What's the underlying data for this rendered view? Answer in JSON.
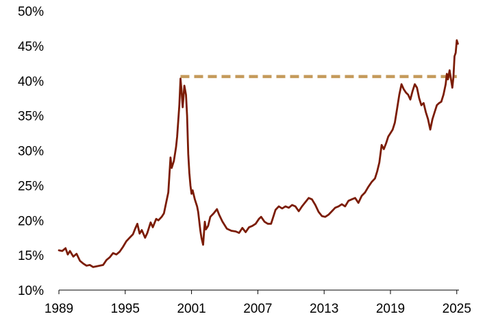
{
  "chart_data": {
    "type": "line",
    "title": "",
    "xlabel": "",
    "ylabel": "",
    "xlim": [
      1989,
      2025.2
    ],
    "ylim": [
      10,
      50
    ],
    "x_ticks": [
      1989,
      1995,
      2001,
      2007,
      2013,
      2019,
      2025
    ],
    "x_tick_labels": [
      "1989",
      "1995",
      "2001",
      "2007",
      "2013",
      "2019",
      "2025"
    ],
    "y_ticks": [
      10,
      15,
      20,
      25,
      30,
      35,
      40,
      45,
      50
    ],
    "y_tick_labels": [
      "10%",
      "15%",
      "20%",
      "25%",
      "30%",
      "35%",
      "40%",
      "45%",
      "50%"
    ],
    "grid": false,
    "legend": "none",
    "series": [
      {
        "color": "#7B1C05",
        "points": [
          [
            1989.0,
            15.7
          ],
          [
            1989.3,
            15.6
          ],
          [
            1989.6,
            16.0
          ],
          [
            1989.8,
            15.1
          ],
          [
            1990.0,
            15.6
          ],
          [
            1990.3,
            14.8
          ],
          [
            1990.6,
            15.2
          ],
          [
            1990.9,
            14.2
          ],
          [
            1991.2,
            13.8
          ],
          [
            1991.5,
            13.5
          ],
          [
            1991.8,
            13.6
          ],
          [
            1992.1,
            13.3
          ],
          [
            1992.4,
            13.4
          ],
          [
            1992.7,
            13.5
          ],
          [
            1993.0,
            13.6
          ],
          [
            1993.3,
            14.3
          ],
          [
            1993.6,
            14.7
          ],
          [
            1993.9,
            15.3
          ],
          [
            1994.2,
            15.1
          ],
          [
            1994.5,
            15.5
          ],
          [
            1994.8,
            16.2
          ],
          [
            1995.1,
            17.0
          ],
          [
            1995.4,
            17.5
          ],
          [
            1995.7,
            18.0
          ],
          [
            1995.9,
            18.8
          ],
          [
            1996.1,
            19.5
          ],
          [
            1996.3,
            18.1
          ],
          [
            1996.5,
            18.6
          ],
          [
            1996.8,
            17.5
          ],
          [
            1997.0,
            18.2
          ],
          [
            1997.3,
            19.7
          ],
          [
            1997.5,
            19.0
          ],
          [
            1997.8,
            20.2
          ],
          [
            1998.0,
            20.0
          ],
          [
            1998.3,
            20.5
          ],
          [
            1998.5,
            21.0
          ],
          [
            1998.7,
            22.5
          ],
          [
            1998.9,
            24.0
          ],
          [
            1999.1,
            29.0
          ],
          [
            1999.2,
            27.5
          ],
          [
            1999.4,
            28.5
          ],
          [
            1999.6,
            30.5
          ],
          [
            1999.7,
            32.0
          ],
          [
            1999.9,
            36.5
          ],
          [
            2000.0,
            40.3
          ],
          [
            2000.1,
            38.5
          ],
          [
            2000.2,
            36.2
          ],
          [
            2000.35,
            39.3
          ],
          [
            2000.5,
            38.0
          ],
          [
            2000.6,
            35.0
          ],
          [
            2000.7,
            29.5
          ],
          [
            2000.8,
            26.8
          ],
          [
            2000.9,
            25.0
          ],
          [
            2001.0,
            23.8
          ],
          [
            2001.1,
            24.3
          ],
          [
            2001.3,
            23.0
          ],
          [
            2001.5,
            22.0
          ],
          [
            2001.6,
            21.2
          ],
          [
            2001.8,
            18.5
          ],
          [
            2001.9,
            17.5
          ],
          [
            2002.05,
            16.5
          ],
          [
            2002.2,
            19.8
          ],
          [
            2002.3,
            18.7
          ],
          [
            2002.5,
            19.2
          ],
          [
            2002.7,
            20.5
          ],
          [
            2003.0,
            21.0
          ],
          [
            2003.3,
            21.6
          ],
          [
            2003.5,
            20.8
          ],
          [
            2003.8,
            19.8
          ],
          [
            2004.2,
            18.8
          ],
          [
            2004.6,
            18.5
          ],
          [
            2005.0,
            18.4
          ],
          [
            2005.3,
            18.2
          ],
          [
            2005.6,
            18.9
          ],
          [
            2005.9,
            18.3
          ],
          [
            2006.2,
            19.0
          ],
          [
            2006.5,
            19.2
          ],
          [
            2006.8,
            19.5
          ],
          [
            2007.1,
            20.2
          ],
          [
            2007.3,
            20.5
          ],
          [
            2007.6,
            19.8
          ],
          [
            2007.9,
            19.5
          ],
          [
            2008.2,
            19.5
          ],
          [
            2008.6,
            21.5
          ],
          [
            2008.9,
            22.0
          ],
          [
            2009.2,
            21.7
          ],
          [
            2009.5,
            22.0
          ],
          [
            2009.8,
            21.8
          ],
          [
            2010.1,
            22.2
          ],
          [
            2010.4,
            22.0
          ],
          [
            2010.7,
            21.3
          ],
          [
            2011.0,
            22.0
          ],
          [
            2011.3,
            22.6
          ],
          [
            2011.6,
            23.2
          ],
          [
            2011.9,
            23.0
          ],
          [
            2012.2,
            22.2
          ],
          [
            2012.5,
            21.2
          ],
          [
            2012.8,
            20.6
          ],
          [
            2013.1,
            20.5
          ],
          [
            2013.4,
            20.8
          ],
          [
            2013.7,
            21.3
          ],
          [
            2014.0,
            21.8
          ],
          [
            2014.3,
            22.0
          ],
          [
            2014.6,
            22.3
          ],
          [
            2014.9,
            22.0
          ],
          [
            2015.2,
            22.8
          ],
          [
            2015.5,
            23.0
          ],
          [
            2015.8,
            23.2
          ],
          [
            2016.1,
            22.5
          ],
          [
            2016.4,
            23.5
          ],
          [
            2016.7,
            24.0
          ],
          [
            2017.0,
            24.8
          ],
          [
            2017.3,
            25.5
          ],
          [
            2017.6,
            26.0
          ],
          [
            2017.8,
            27.0
          ],
          [
            2018.0,
            28.3
          ],
          [
            2018.2,
            30.8
          ],
          [
            2018.4,
            30.2
          ],
          [
            2018.6,
            31.0
          ],
          [
            2018.8,
            32.0
          ],
          [
            2019.0,
            32.5
          ],
          [
            2019.2,
            33.0
          ],
          [
            2019.4,
            34.0
          ],
          [
            2019.6,
            36.0
          ],
          [
            2019.8,
            38.0
          ],
          [
            2020.0,
            39.5
          ],
          [
            2020.2,
            38.8
          ],
          [
            2020.4,
            38.3
          ],
          [
            2020.6,
            38.0
          ],
          [
            2020.8,
            37.3
          ],
          [
            2021.0,
            38.5
          ],
          [
            2021.2,
            39.5
          ],
          [
            2021.4,
            39.0
          ],
          [
            2021.6,
            37.5
          ],
          [
            2021.8,
            36.5
          ],
          [
            2022.0,
            36.8
          ],
          [
            2022.2,
            35.5
          ],
          [
            2022.4,
            34.5
          ],
          [
            2022.6,
            33.0
          ],
          [
            2022.8,
            34.5
          ],
          [
            2023.0,
            35.5
          ],
          [
            2023.2,
            36.5
          ],
          [
            2023.4,
            36.8
          ],
          [
            2023.6,
            37.0
          ],
          [
            2023.8,
            38.0
          ],
          [
            2024.0,
            39.5
          ],
          [
            2024.1,
            41.0
          ],
          [
            2024.2,
            40.2
          ],
          [
            2024.35,
            41.5
          ],
          [
            2024.5,
            40.0
          ],
          [
            2024.6,
            39.0
          ],
          [
            2024.7,
            40.5
          ],
          [
            2024.8,
            43.5
          ],
          [
            2024.9,
            44.0
          ],
          [
            2025.0,
            45.8
          ],
          [
            2025.1,
            45.3
          ]
        ]
      }
    ],
    "reference_line": {
      "style": "dashed",
      "color": "#C49A5A",
      "y": 40.6,
      "x_start": 2000.0,
      "x_end": 2025.0
    }
  }
}
